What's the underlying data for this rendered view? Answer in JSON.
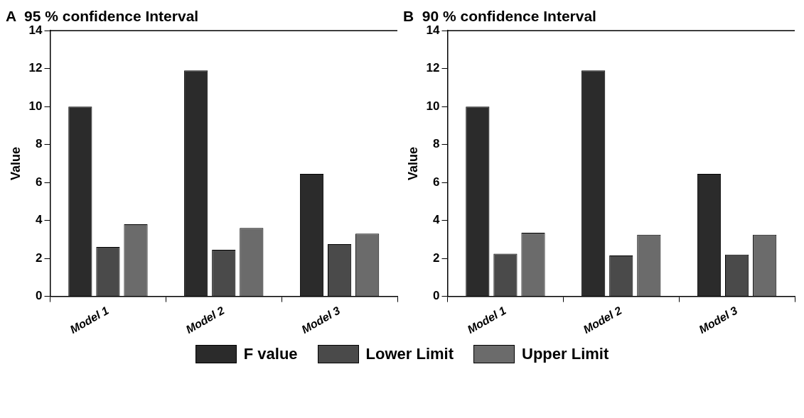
{
  "chart_data": [
    {
      "type": "bar",
      "title": "A  95 % confidence Interval",
      "ylabel": "Value",
      "categories": [
        "Model 1",
        "Model 2",
        "Model 3"
      ],
      "ylim": [
        0,
        14
      ],
      "yticks": [
        0,
        2,
        4,
        6,
        8,
        10,
        12,
        14
      ],
      "grid": false,
      "legend": "bottom",
      "series": [
        {
          "name": "F value",
          "color": "#2b2b2b",
          "values": [
            10,
            11.9,
            6.45
          ]
        },
        {
          "name": "Lower Limit",
          "color": "#4a4a4a",
          "values": [
            2.6,
            2.45,
            2.75
          ]
        },
        {
          "name": "Upper Limit",
          "color": "#6b6b6b",
          "values": [
            3.8,
            3.6,
            3.3
          ]
        }
      ]
    },
    {
      "type": "bar",
      "title": "B  90 % confidence Interval",
      "ylabel": "Value",
      "categories": [
        "Model 1",
        "Model 2",
        "Model 3"
      ],
      "ylim": [
        0,
        14
      ],
      "yticks": [
        0,
        2,
        4,
        6,
        8,
        10,
        12,
        14
      ],
      "grid": false,
      "series": [
        {
          "color": "#2b2b2b",
          "values": [
            10,
            11.9,
            6.45
          ]
        },
        {
          "color": "#4a4a4a",
          "values": [
            2.25,
            2.15,
            2.2
          ]
        },
        {
          "color": "#6b6b6b",
          "values": [
            3.35,
            3.25,
            3.25
          ]
        }
      ]
    }
  ]
}
